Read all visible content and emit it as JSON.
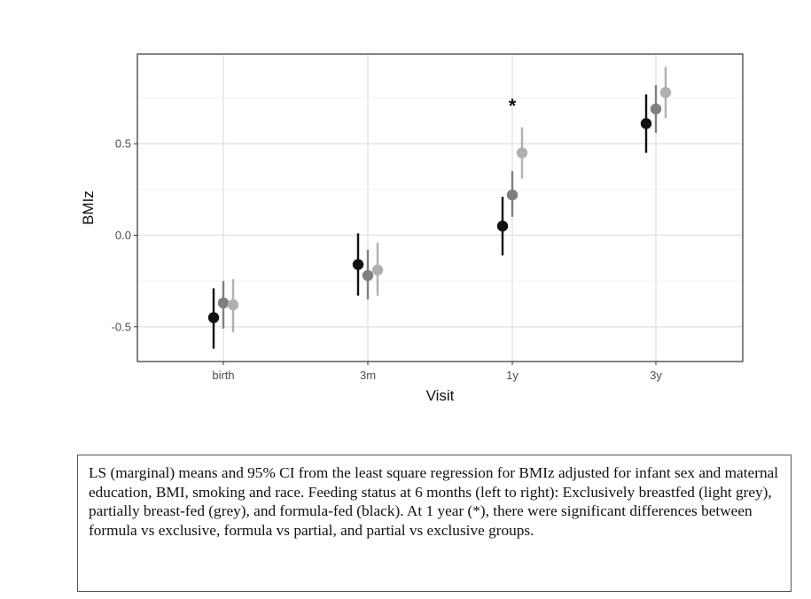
{
  "chart_data": {
    "type": "scatter",
    "subtype": "point-range with 95% CI error bars",
    "title": "",
    "xlabel": "Visit",
    "ylabel": "BMIz",
    "categories": [
      "birth",
      "3m",
      "1y",
      "3y"
    ],
    "ylim": [
      -0.69,
      0.99
    ],
    "yticks": [
      -0.5,
      0.0,
      0.5
    ],
    "ytick_labels": [
      "-0.5",
      "0.0",
      "0.5"
    ],
    "grid": true,
    "legend": "none",
    "series": [
      {
        "color": "#111111",
        "values": [
          -0.45,
          -0.16,
          0.05,
          0.61
        ],
        "lower": [
          -0.62,
          -0.33,
          -0.11,
          0.45
        ],
        "upper": [
          -0.29,
          0.01,
          0.21,
          0.77
        ]
      },
      {
        "color": "#7f7f7f",
        "values": [
          -0.37,
          -0.22,
          0.22,
          0.69
        ],
        "lower": [
          -0.51,
          -0.35,
          0.1,
          0.56
        ],
        "upper": [
          -0.25,
          -0.08,
          0.35,
          0.82
        ]
      },
      {
        "color": "#b0b0b0",
        "values": [
          -0.38,
          -0.19,
          0.45,
          0.78
        ],
        "lower": [
          -0.53,
          -0.33,
          0.31,
          0.64
        ],
        "upper": [
          -0.24,
          -0.04,
          0.59,
          0.92
        ]
      }
    ],
    "annotations": [
      {
        "category": "1y",
        "text": "*"
      }
    ]
  },
  "caption": {
    "text": "LS (marginal) means and 95% CI from the least square regression for BMIz adjusted for infant sex and maternal education, BMI, smoking and race. Feeding status at 6 months (left to right): Exclusively breastfed (light grey), partially breast-fed (grey), and formula-fed (black). At 1 year (*), there were significant differences between formula vs exclusive, formula vs partial, and partial vs exclusive groups."
  }
}
